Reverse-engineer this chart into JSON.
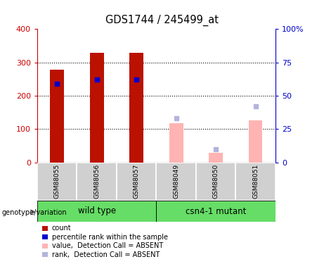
{
  "title": "GDS1744 / 245499_at",
  "samples": [
    "GSM88055",
    "GSM88056",
    "GSM88057",
    "GSM88049",
    "GSM88050",
    "GSM88051"
  ],
  "count_values": [
    277,
    328,
    328,
    null,
    null,
    null
  ],
  "percentile_values": [
    235,
    248,
    248,
    null,
    null,
    null
  ],
  "absent_value_values": [
    null,
    null,
    null,
    118,
    28,
    125
  ],
  "absent_rank_values": [
    null,
    null,
    null,
    33,
    10,
    42
  ],
  "ylim_left": [
    0,
    400
  ],
  "ylim_right": [
    0,
    100
  ],
  "yticks_left": [
    0,
    100,
    200,
    300,
    400
  ],
  "yticks_right": [
    0,
    25,
    50,
    75,
    100
  ],
  "ytick_labels_right": [
    "0",
    "25",
    "50",
    "75",
    "100%"
  ],
  "color_count": "#bb1100",
  "color_percentile": "#0000cc",
  "color_absent_value": "#ffb3b3",
  "color_absent_rank": "#b3b3dd",
  "color_green": "#66dd66",
  "color_gray_box": "#d0d0d0",
  "left_ax_color": "#cc0000",
  "right_ax_color": "#0000cc",
  "grid_dotted_color": "#000000",
  "bar_width": 0.35
}
